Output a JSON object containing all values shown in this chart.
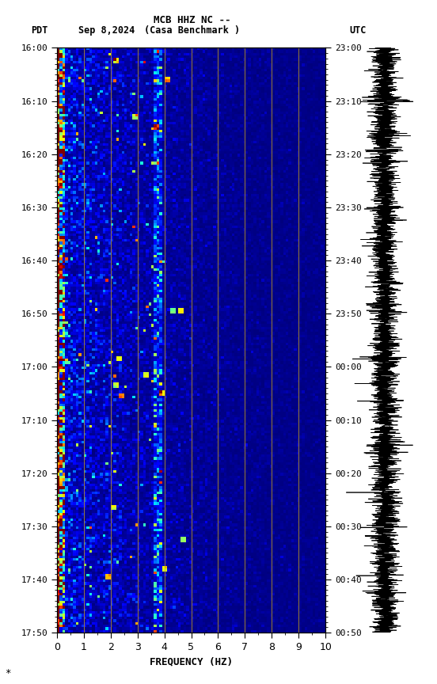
{
  "title_line1": "MCB HHZ NC --",
  "title_line2": "(Casa Benchmark )",
  "date_label": "Sep 8,2024",
  "left_tz": "PDT",
  "right_tz": "UTC",
  "xlabel": "FREQUENCY (HZ)",
  "freq_min": 0,
  "freq_max": 10,
  "freq_ticks": [
    0,
    1,
    2,
    3,
    4,
    5,
    6,
    7,
    8,
    9,
    10
  ],
  "left_yticks_labels": [
    "16:00",
    "16:10",
    "16:20",
    "16:30",
    "16:40",
    "16:50",
    "17:00",
    "17:10",
    "17:20",
    "17:30",
    "17:40",
    "17:50"
  ],
  "right_yticks_labels": [
    "23:00",
    "23:10",
    "23:20",
    "23:30",
    "23:40",
    "23:50",
    "00:00",
    "00:10",
    "00:20",
    "00:30",
    "00:40",
    "00:50"
  ],
  "vertical_lines_freq": [
    1,
    2,
    3,
    4,
    5,
    6,
    7,
    8,
    9
  ],
  "vertical_line_color": "#c8a020",
  "colormap": "jet",
  "fig_width": 5.52,
  "fig_height": 8.64,
  "dpi": 100,
  "seed": 42
}
